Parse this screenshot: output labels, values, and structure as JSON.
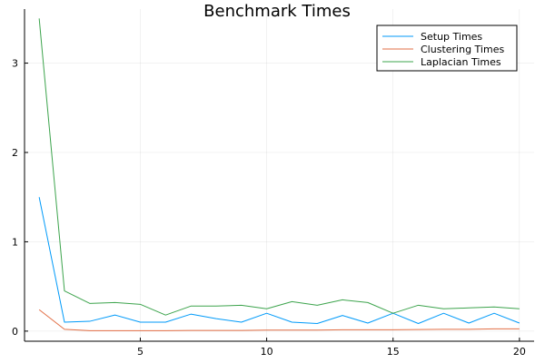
{
  "chart_data": {
    "type": "line",
    "title": "Benchmark Times",
    "xlabel": "",
    "ylabel": "",
    "xlim": [
      0.42,
      20.58
    ],
    "ylim": [
      -0.113,
      3.605
    ],
    "xticks": [
      5,
      10,
      15,
      20
    ],
    "yticks": [
      0,
      1,
      2,
      3
    ],
    "grid": true,
    "legend_position": "top-right",
    "x": [
      1,
      2,
      3,
      4,
      5,
      6,
      7,
      8,
      9,
      10,
      11,
      12,
      13,
      14,
      15,
      16,
      17,
      18,
      19,
      20
    ],
    "series": [
      {
        "name": "Setup Times",
        "color": "#009af9",
        "values": [
          1.5,
          0.1,
          0.11,
          0.18,
          0.1,
          0.1,
          0.19,
          0.14,
          0.1,
          0.2,
          0.1,
          0.085,
          0.175,
          0.09,
          0.2,
          0.085,
          0.2,
          0.09,
          0.2,
          0.09
        ]
      },
      {
        "name": "Clustering Times",
        "color": "#e26f46",
        "values": [
          0.24,
          0.02,
          0.005,
          0.005,
          0.005,
          0.005,
          0.008,
          0.008,
          0.008,
          0.012,
          0.012,
          0.012,
          0.015,
          0.015,
          0.015,
          0.018,
          0.02,
          0.02,
          0.025,
          0.025
        ]
      },
      {
        "name": "Laplacian Times",
        "color": "#3da44d",
        "values": [
          3.5,
          0.45,
          0.31,
          0.32,
          0.3,
          0.18,
          0.28,
          0.28,
          0.29,
          0.25,
          0.33,
          0.29,
          0.35,
          0.32,
          0.2,
          0.29,
          0.25,
          0.26,
          0.27,
          0.25
        ]
      }
    ]
  }
}
